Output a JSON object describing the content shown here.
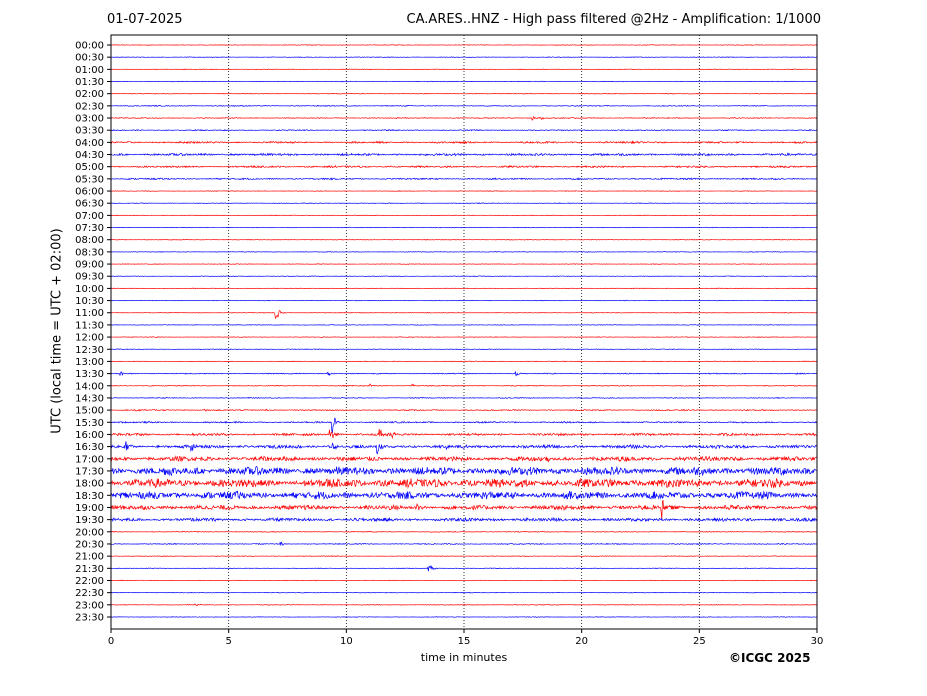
{
  "header": {
    "date": "01-07-2025",
    "title": "CA.ARES..HNZ - High pass filtered @2Hz - Amplification: 1/1000"
  },
  "footer": {
    "copyright": "©ICGC 2025"
  },
  "chart_data": {
    "type": "line",
    "title": "CA.ARES..HNZ - High pass filtered @2Hz - Amplification: 1/1000",
    "xlabel": "time in minutes",
    "ylabel": "UTC (local time = UTC + 02:00)",
    "xlim": [
      0,
      30
    ],
    "x_ticks": [
      0,
      5,
      10,
      15,
      20,
      25,
      30
    ],
    "grid": "vertical dotted lines at 5-minute ticks",
    "trace_colors": [
      "#ff0000",
      "#0000ff"
    ],
    "rows": [
      {
        "label": "00:00",
        "noise": 0.3,
        "events": []
      },
      {
        "label": "00:30",
        "noise": 0.3,
        "events": []
      },
      {
        "label": "01:00",
        "noise": 0.3,
        "events": []
      },
      {
        "label": "01:30",
        "noise": 0.3,
        "events": []
      },
      {
        "label": "02:00",
        "noise": 0.35,
        "events": []
      },
      {
        "label": "02:30",
        "noise": 0.45,
        "events": []
      },
      {
        "label": "03:00",
        "noise": 0.45,
        "events": [
          {
            "t": 17.9,
            "amp": 2.5
          },
          {
            "t": 18.3,
            "amp": 2
          }
        ]
      },
      {
        "label": "03:30",
        "noise": 0.5,
        "events": []
      },
      {
        "label": "04:00",
        "noise": 0.9,
        "events": []
      },
      {
        "label": "04:30",
        "noise": 1.1,
        "events": []
      },
      {
        "label": "05:00",
        "noise": 0.9,
        "events": []
      },
      {
        "label": "05:30",
        "noise": 0.7,
        "events": []
      },
      {
        "label": "06:00",
        "noise": 0.3,
        "events": []
      },
      {
        "label": "06:30",
        "noise": 0.3,
        "events": []
      },
      {
        "label": "07:00",
        "noise": 0.3,
        "events": []
      },
      {
        "label": "07:30",
        "noise": 0.3,
        "events": []
      },
      {
        "label": "08:00",
        "noise": 0.3,
        "events": []
      },
      {
        "label": "08:30",
        "noise": 0.3,
        "events": []
      },
      {
        "label": "09:00",
        "noise": 0.3,
        "events": []
      },
      {
        "label": "09:30",
        "noise": 0.3,
        "events": []
      },
      {
        "label": "10:00",
        "noise": 0.3,
        "events": []
      },
      {
        "label": "10:30",
        "noise": 0.3,
        "events": []
      },
      {
        "label": "11:00",
        "noise": 0.3,
        "events": [
          {
            "t": 7.0,
            "amp": 10
          }
        ]
      },
      {
        "label": "11:30",
        "noise": 0.3,
        "events": []
      },
      {
        "label": "12:00",
        "noise": 0.3,
        "events": []
      },
      {
        "label": "12:30",
        "noise": 0.35,
        "events": []
      },
      {
        "label": "13:00",
        "noise": 0.35,
        "events": []
      },
      {
        "label": "13:30",
        "noise": 0.5,
        "events": [
          {
            "t": 0.4,
            "amp": 3
          },
          {
            "t": 9.2,
            "amp": 3
          },
          {
            "t": 17.2,
            "amp": 3
          }
        ]
      },
      {
        "label": "14:00",
        "noise": 0.4,
        "events": [
          {
            "t": 11.0,
            "amp": 2.5
          },
          {
            "t": 12.8,
            "amp": 2
          }
        ]
      },
      {
        "label": "14:30",
        "noise": 0.4,
        "events": []
      },
      {
        "label": "15:00",
        "noise": 0.6,
        "events": [
          {
            "t": 4.0,
            "amp": 3
          },
          {
            "t": 1.0,
            "amp": 2
          },
          {
            "t": 6.5,
            "amp": 2
          }
        ]
      },
      {
        "label": "15:30",
        "noise": 0.7,
        "events": [
          {
            "t": 9.4,
            "amp": 12
          }
        ]
      },
      {
        "label": "16:00",
        "noise": 1.2,
        "events": [
          {
            "t": 9.3,
            "amp": 10
          },
          {
            "t": 11.4,
            "amp": 8
          },
          {
            "t": 11.9,
            "amp": 4
          }
        ]
      },
      {
        "label": "16:30",
        "noise": 1.6,
        "events": [
          {
            "t": 0.6,
            "amp": 8
          },
          {
            "t": 3.4,
            "amp": 7
          },
          {
            "t": 9.4,
            "amp": 6
          },
          {
            "t": 11.3,
            "amp": 9
          },
          {
            "t": 14.2,
            "amp": 4
          }
        ]
      },
      {
        "label": "17:00",
        "noise": 2.2,
        "events": [
          {
            "t": 18.5,
            "amp": 4
          },
          {
            "t": 25.5,
            "amp": 4
          }
        ]
      },
      {
        "label": "17:30",
        "noise": 4.0,
        "events": []
      },
      {
        "label": "18:00",
        "noise": 4.2,
        "events": []
      },
      {
        "label": "18:30",
        "noise": 3.6,
        "events": []
      },
      {
        "label": "19:00",
        "noise": 2.2,
        "events": [
          {
            "t": 13.0,
            "amp": 5
          },
          {
            "t": 23.4,
            "amp": 14
          }
        ]
      },
      {
        "label": "19:30",
        "noise": 1.6,
        "events": []
      },
      {
        "label": "20:00",
        "noise": 0.4,
        "events": []
      },
      {
        "label": "20:30",
        "noise": 0.5,
        "events": [
          {
            "t": 7.2,
            "amp": 2
          }
        ]
      },
      {
        "label": "21:00",
        "noise": 0.3,
        "events": []
      },
      {
        "label": "21:30",
        "noise": 0.3,
        "events": [
          {
            "t": 13.5,
            "amp": 7
          }
        ]
      },
      {
        "label": "22:00",
        "noise": 0.3,
        "events": []
      },
      {
        "label": "22:30",
        "noise": 0.3,
        "events": []
      },
      {
        "label": "23:00",
        "noise": 0.3,
        "events": [
          {
            "t": 3.6,
            "amp": 2
          }
        ]
      },
      {
        "label": "23:30",
        "noise": 0.3,
        "events": []
      }
    ]
  }
}
